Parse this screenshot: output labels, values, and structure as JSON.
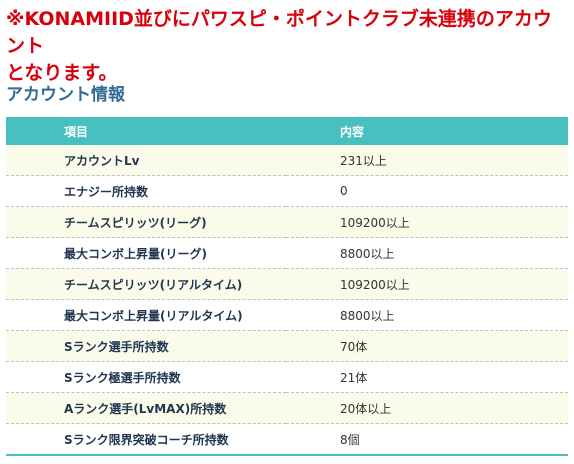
{
  "notice": {
    "text": "※KONAMIID並びにパワスピ・ポイントクラブ未連携のアカウント\nとなります。"
  },
  "section": {
    "title": "アカウント情報"
  },
  "table": {
    "headers": [
      "項目",
      "内容"
    ],
    "rows": [
      {
        "label": "アカウントLv",
        "value": "231以上"
      },
      {
        "label": "エナジー所持数",
        "value": "0"
      },
      {
        "label": "チームスピリッツ(リーグ)",
        "value": "109200以上"
      },
      {
        "label": "最大コンボ上昇量(リーグ)",
        "value": "8800以上"
      },
      {
        "label": "チームスピリッツ(リアルタイム)",
        "value": "109200以上"
      },
      {
        "label": "最大コンボ上昇量(リアルタイム)",
        "value": "8800以上"
      },
      {
        "label": "Sランク選手所持数",
        "value": "70体"
      },
      {
        "label": "Sランク極選手所持数",
        "value": "21体"
      },
      {
        "label": "Aランク選手(LvMAX)所持数",
        "value": "20体以上"
      },
      {
        "label": "Sランク限界突破コーチ所持数",
        "value": "8個"
      }
    ]
  },
  "colors": {
    "notice": "#d8000c",
    "title": "#336b96",
    "header_bg": "#48c0c0",
    "row_alt_bg": "#fbfbe9"
  }
}
